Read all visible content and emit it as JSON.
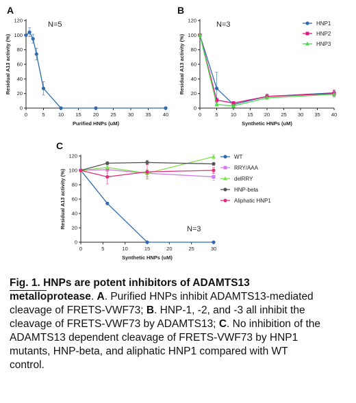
{
  "colors": {
    "HNP1": "#2e6bb0",
    "HNP2": "#e2187f",
    "HNP3": "#4cd84c",
    "WT": "#2e6bb0",
    "RRY/AAA": "#d07ee6",
    "delRRY": "#7ee04b",
    "HNP-beta": "#555555",
    "Aliphatic HNP1": "#e0307d"
  },
  "chart_data": [
    {
      "panel": "A",
      "type": "line",
      "annotation": "N=5",
      "xlabel": "Purified HNPs (uM)",
      "ylabel": "Residual A13 activity (%)",
      "xlim": [
        0,
        40
      ],
      "ylim": [
        0,
        120
      ],
      "xticks": [
        0,
        5,
        10,
        15,
        20,
        25,
        30,
        35,
        40
      ],
      "yticks": [
        0,
        20,
        40,
        60,
        80,
        100,
        120
      ],
      "grid": false,
      "series": [
        {
          "key": "HNP1",
          "x": [
            0,
            1,
            2,
            3,
            5,
            10,
            20,
            40
          ],
          "y": [
            100,
            104,
            95,
            74,
            27,
            0,
            0,
            0
          ],
          "err": [
            0,
            6,
            6,
            8,
            9,
            0,
            0,
            0
          ]
        }
      ]
    },
    {
      "panel": "B",
      "type": "line",
      "annotation": "N=3",
      "xlabel": "Synthetic HNPs (uM)",
      "ylabel": "Residual A13 activity (%)",
      "xlim": [
        0,
        40
      ],
      "ylim": [
        0,
        120
      ],
      "xticks": [
        0,
        5,
        10,
        15,
        20,
        25,
        30,
        35,
        40
      ],
      "yticks": [
        0,
        20,
        40,
        60,
        80,
        100,
        120
      ],
      "grid": false,
      "legend_position": "top-right",
      "series": [
        {
          "key": "HNP1",
          "name": "HNP1",
          "x": [
            0,
            5,
            10,
            20,
            40
          ],
          "y": [
            100,
            27,
            5,
            16,
            21
          ],
          "err": [
            0,
            22,
            2,
            3,
            4
          ]
        },
        {
          "key": "HNP2",
          "name": "HNP2",
          "x": [
            0,
            5,
            10,
            20,
            40
          ],
          "y": [
            100,
            11,
            7,
            16,
            20
          ],
          "err": [
            0,
            3,
            2,
            3,
            4
          ]
        },
        {
          "key": "HNP3",
          "name": "HNP3",
          "x": [
            0,
            5,
            10,
            20,
            40
          ],
          "y": [
            100,
            5,
            3,
            14,
            19
          ],
          "err": [
            0,
            2,
            2,
            2,
            4
          ]
        }
      ]
    },
    {
      "panel": "C",
      "type": "line",
      "annotation": "N=3",
      "xlabel": "Synthetic HNPs (uM)",
      "ylabel": "Residual A13 activity (%)",
      "xlim": [
        0,
        30
      ],
      "ylim": [
        0,
        120
      ],
      "xticks": [
        0,
        5,
        10,
        15,
        20,
        25,
        30
      ],
      "yticks": [
        0,
        20,
        40,
        60,
        80,
        100,
        120
      ],
      "grid": false,
      "legend_position": "right",
      "series": [
        {
          "key": "WT",
          "name": "WT",
          "x": [
            0,
            6,
            15,
            30
          ],
          "y": [
            100,
            54,
            0,
            0
          ],
          "err": [
            0,
            0,
            0,
            0
          ]
        },
        {
          "key": "RRY/AAA",
          "name": "RRY/AAA",
          "x": [
            0,
            6,
            15,
            30
          ],
          "y": [
            100,
            101,
            96,
            91
          ],
          "err": [
            0,
            5,
            5,
            5
          ]
        },
        {
          "key": "delRRY",
          "name": "delRRY",
          "x": [
            0,
            6,
            15,
            30
          ],
          "y": [
            100,
            104,
            96,
            119
          ],
          "err": [
            0,
            3,
            5,
            3
          ]
        },
        {
          "key": "HNP-beta",
          "name": "HNP-beta",
          "x": [
            0,
            6,
            15,
            30
          ],
          "y": [
            100,
            110,
            111,
            109
          ],
          "err": [
            0,
            2,
            3,
            2
          ]
        },
        {
          "key": "Aliphatic HNP1",
          "name": "Aliphatic HNP1",
          "x": [
            0,
            6,
            15,
            30
          ],
          "y": [
            100,
            91,
            98,
            100
          ],
          "err": [
            0,
            10,
            10,
            4
          ]
        }
      ]
    }
  ],
  "caption": {
    "fig_label": "Fig. 1.",
    "title_part1": " HNPs are potent inhibitors of ADAMTS13 ",
    "title_part2": "metallo",
    "title_part3": "protease",
    "sep1": ". ",
    "label_A": "A",
    "text_A": ". Purified HNPs inhibit ADAMTS13-mediated cleavage of FRETS-VWF73; ",
    "label_B": "B",
    "text_B": ". HNP-1, -2, and -3 all inhibit the cleavage of FRETS-VWF73 by ADAMTS13; ",
    "label_C": "C",
    "text_C": ". No inhibition of the ADAMTS13 dependent cleavage of FRETS-VWF73 by HNP1 mutants, HNP-beta, and aliphatic HNP1 compared with WT control."
  }
}
